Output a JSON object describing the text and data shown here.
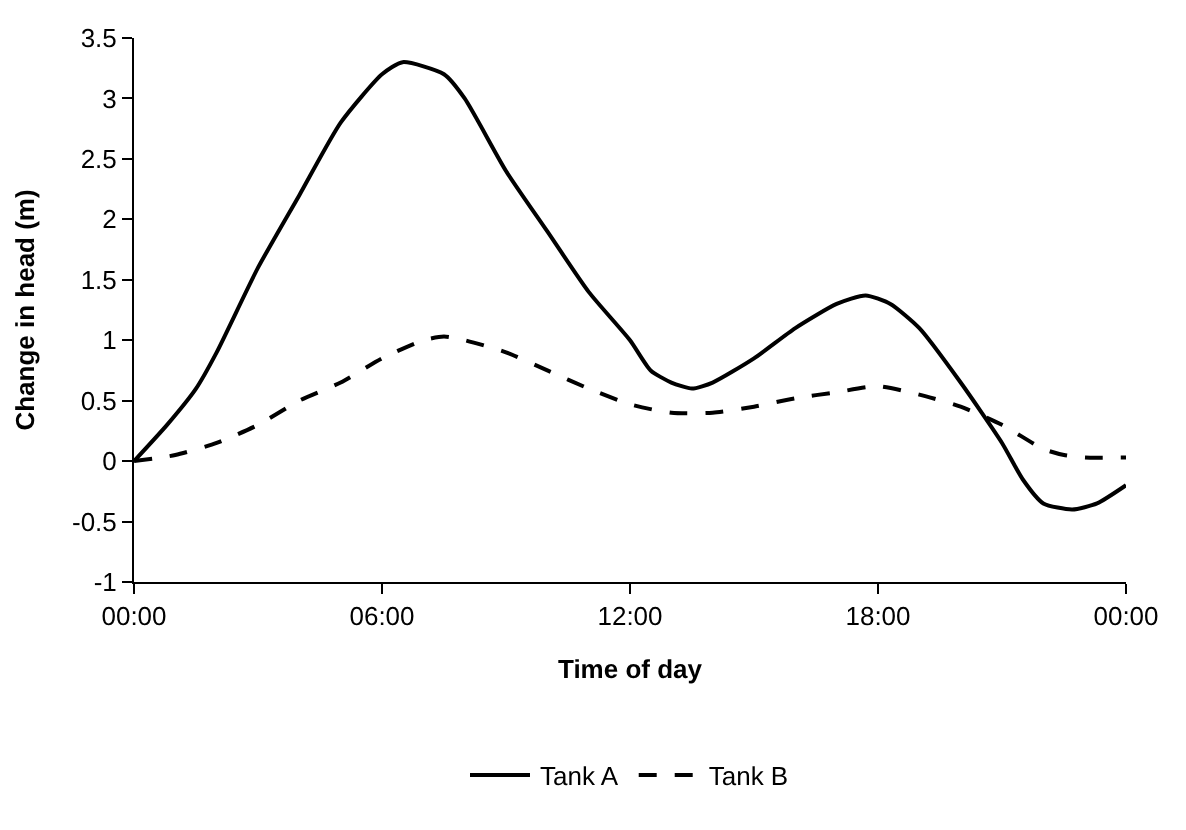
{
  "chart_data": {
    "type": "line",
    "xlabel": "Time of day",
    "ylabel": "Change in head (m)",
    "xlim": [
      0,
      24
    ],
    "xticks": [
      {
        "value": 0,
        "label": "00:00"
      },
      {
        "value": 6,
        "label": "06:00"
      },
      {
        "value": 12,
        "label": "12:00"
      },
      {
        "value": 18,
        "label": "18:00"
      },
      {
        "value": 24,
        "label": "00:00"
      }
    ],
    "ylim": [
      -1,
      3.5
    ],
    "yticks": [
      -1,
      -0.5,
      0,
      0.5,
      1,
      1.5,
      2,
      2.5,
      3,
      3.5
    ],
    "legend": "bottom",
    "marker": "none",
    "series": [
      {
        "name": "Tank A",
        "color": "#000000",
        "line_style": "solid",
        "x": [
          0,
          0.8,
          1.5,
          2,
          3,
          4,
          5,
          6,
          6.5,
          7.5,
          8,
          9,
          10,
          11,
          12,
          12.5,
          13,
          13.5,
          14,
          15,
          16,
          17,
          17.7,
          18.3,
          19,
          20,
          21,
          21.5,
          22,
          22.7,
          23.3,
          24
        ],
        "values": [
          0,
          0.3,
          0.6,
          0.9,
          1.6,
          2.2,
          2.8,
          3.2,
          3.3,
          3.2,
          3.0,
          2.4,
          1.9,
          1.4,
          1.0,
          0.75,
          0.65,
          0.6,
          0.65,
          0.85,
          1.1,
          1.3,
          1.37,
          1.3,
          1.1,
          0.65,
          0.15,
          -0.15,
          -0.35,
          -0.4,
          -0.35,
          -0.2
        ]
      },
      {
        "name": "Tank B",
        "color": "#000000",
        "line_style": "dashed",
        "x": [
          0,
          1,
          2,
          3,
          4,
          5,
          6,
          7,
          7.5,
          8,
          9,
          10,
          11,
          12,
          13,
          14,
          15,
          16,
          17,
          18,
          19,
          20,
          21,
          22,
          22.5,
          23,
          24
        ],
        "values": [
          0,
          0.05,
          0.15,
          0.3,
          0.5,
          0.65,
          0.85,
          1.0,
          1.03,
          1.0,
          0.9,
          0.75,
          0.6,
          0.47,
          0.4,
          0.4,
          0.45,
          0.52,
          0.57,
          0.62,
          0.55,
          0.45,
          0.3,
          0.1,
          0.05,
          0.03,
          0.03
        ]
      }
    ]
  }
}
